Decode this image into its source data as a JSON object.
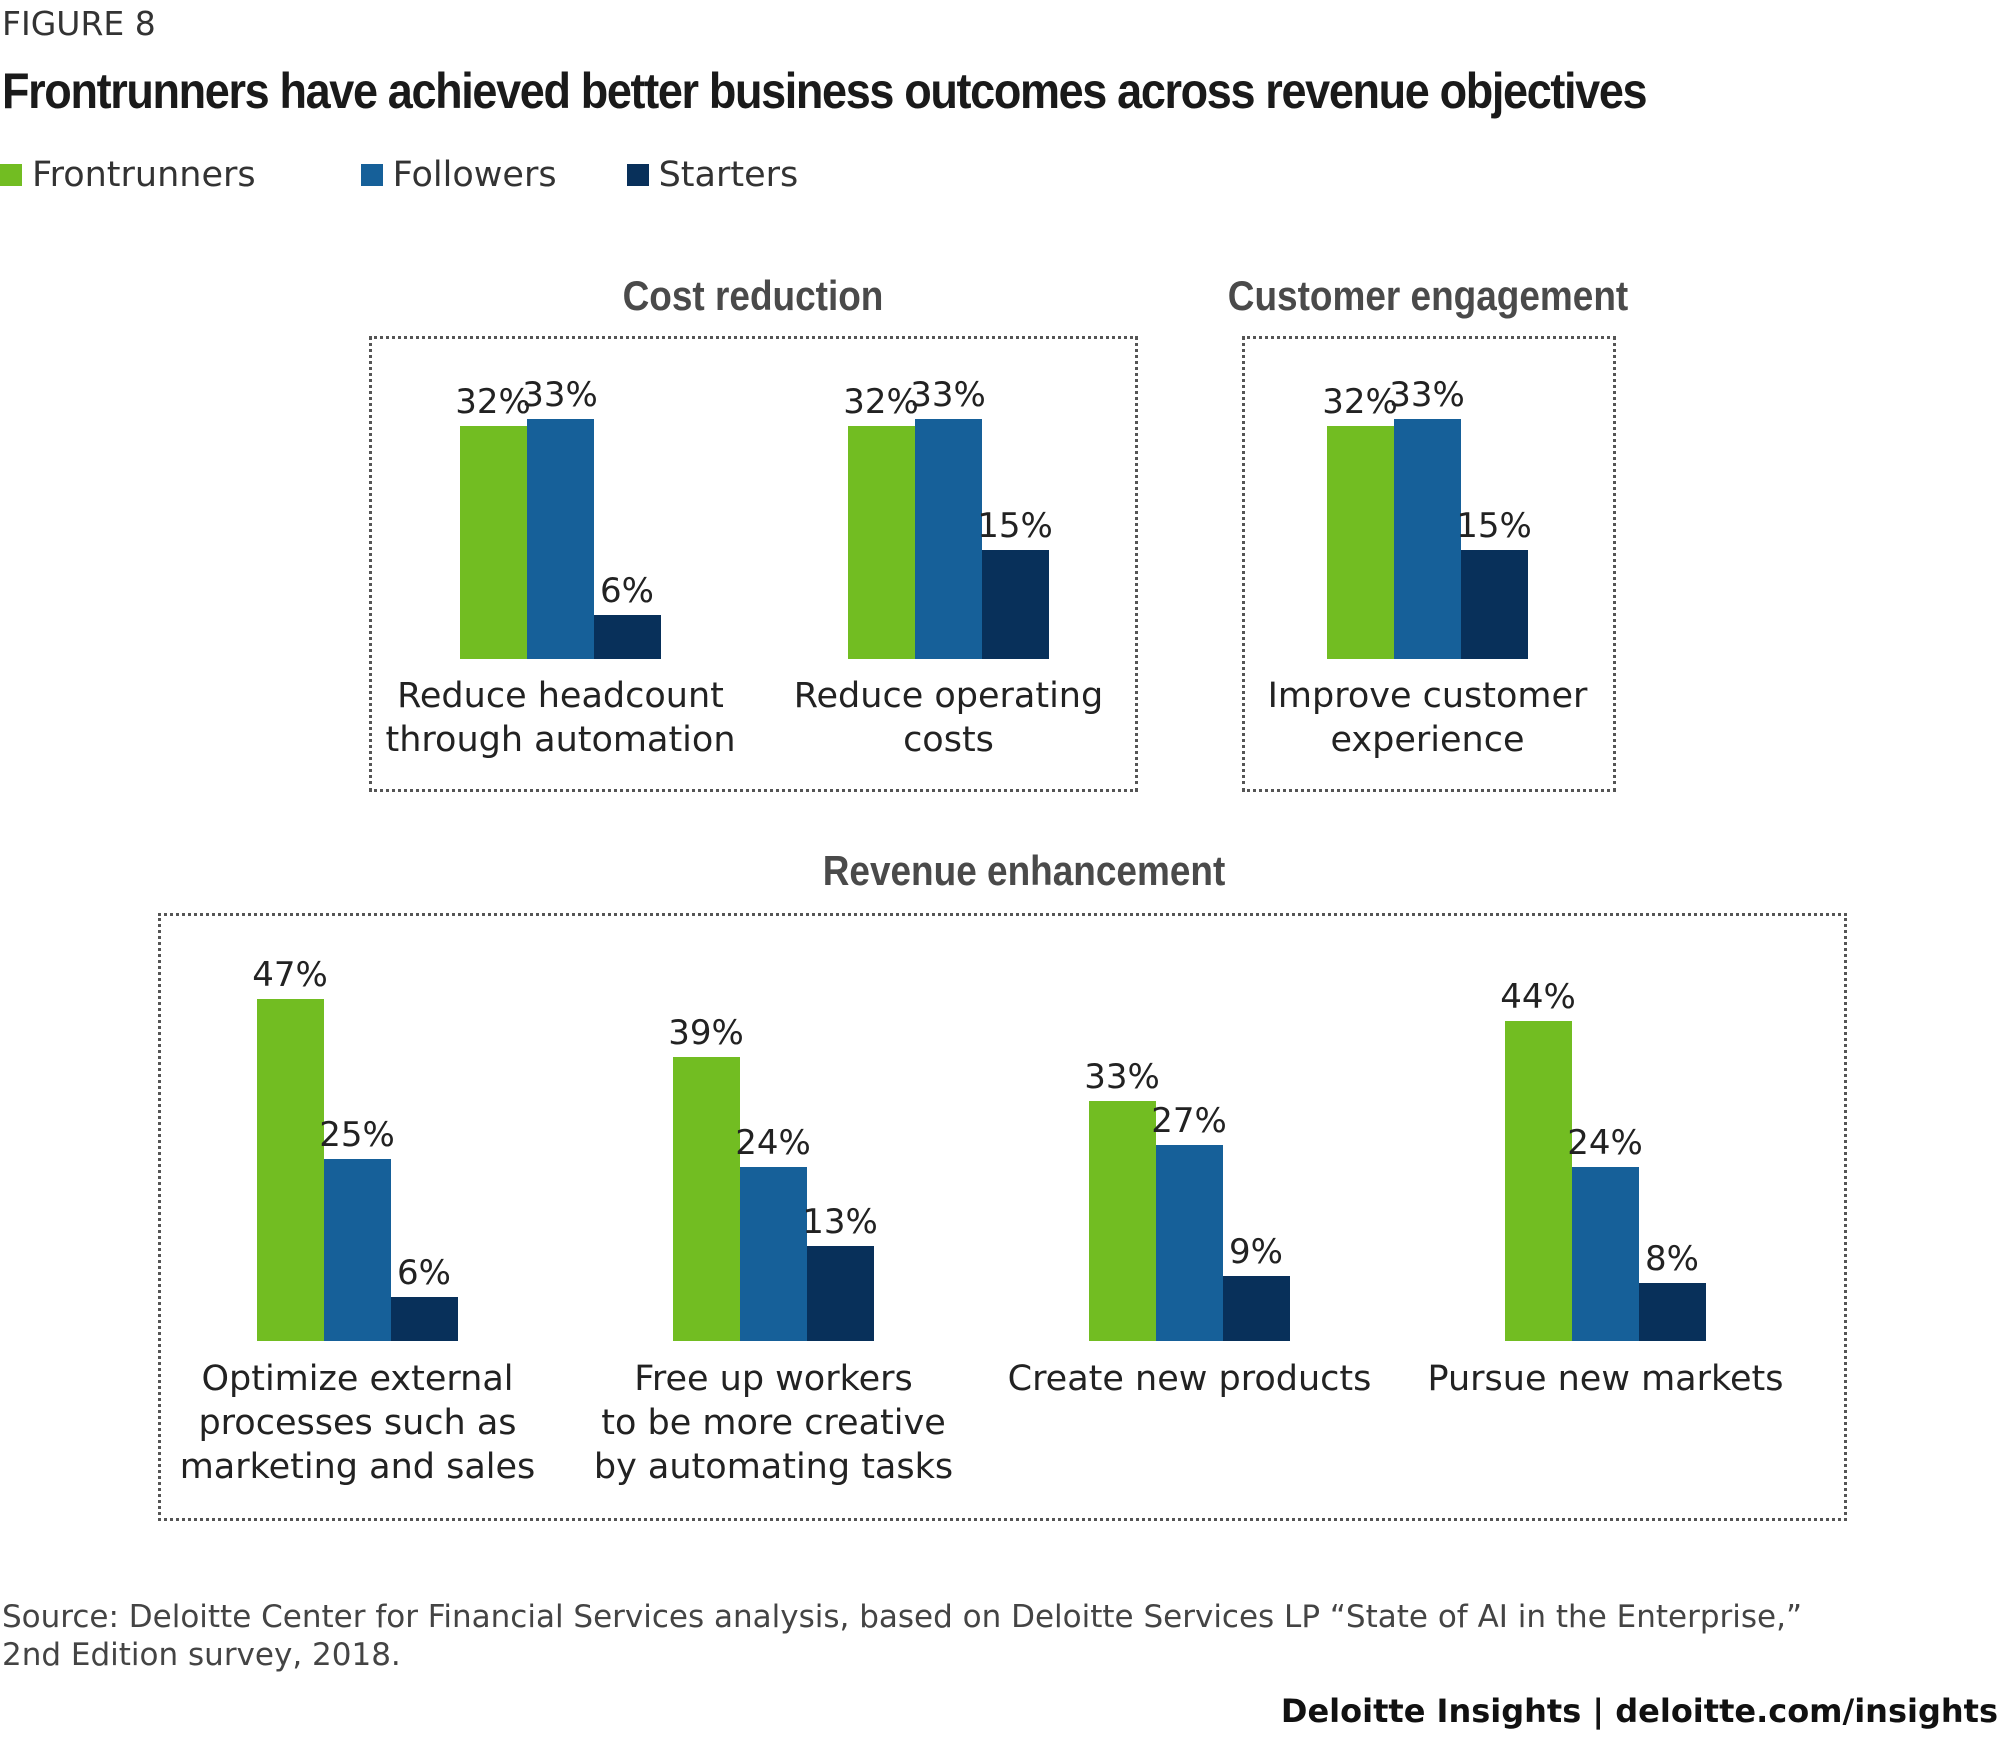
{
  "figure_label": "FIGURE 8",
  "title": "Frontrunners have achieved better business outcomes across revenue objectives",
  "colors": {
    "Frontrunners": "#72bd22",
    "Followers": "#166099",
    "Starters": "#08305a"
  },
  "legend": [
    {
      "label": "Frontrunners",
      "color": "#72bd22"
    },
    {
      "label": "Followers",
      "color": "#166099"
    },
    {
      "label": "Starters",
      "color": "#08305a"
    }
  ],
  "chart_data": {
    "type": "bar",
    "title": "Frontrunners have achieved better business outcomes across revenue objectives",
    "series_names": [
      "Frontrunners",
      "Followers",
      "Starters"
    ],
    "unit": "%",
    "groups": [
      {
        "name": "Cost reduction",
        "categories": [
          {
            "label": "Reduce headcount\nthrough automation",
            "values": [
              32,
              33,
              6
            ]
          },
          {
            "label": "Reduce operating\ncosts",
            "values": [
              32,
              33,
              15
            ]
          }
        ]
      },
      {
        "name": "Customer engagement",
        "categories": [
          {
            "label": "Improve customer\nexperience",
            "values": [
              32,
              33,
              15
            ]
          }
        ]
      },
      {
        "name": "Revenue enhancement",
        "categories": [
          {
            "label": "Optimize external\nprocesses such as\nmarketing and sales",
            "values": [
              47,
              25,
              6
            ]
          },
          {
            "label": "Free up workers\nto be more creative\nby automating tasks",
            "values": [
              39,
              24,
              13
            ]
          },
          {
            "label": "Create new products",
            "values": [
              33,
              27,
              9
            ]
          },
          {
            "label": "Pursue new markets",
            "values": [
              44,
              24,
              8
            ]
          }
        ]
      }
    ],
    "legend_position": "top-left",
    "grid": false
  },
  "source": "Source: Deloitte Center for Financial Services analysis, based on Deloitte Services LP “State of AI in the Enterprise,”\n2nd Edition survey, 2018.",
  "brand": "Deloitte Insights | deloitte.com/insights"
}
